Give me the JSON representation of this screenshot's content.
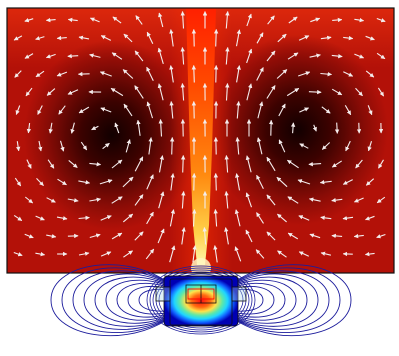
{
  "figure": {
    "colors": {
      "background": "#ffffff",
      "field_dark": "#2a0000",
      "field_mid": "#a00d0a",
      "field_bright": "#ff2a00",
      "plume_core": "#fff2a0",
      "arrow": "#f4ecec",
      "frame": "#111111",
      "contour": "#1c1c9c",
      "heat_red": "#ff2020",
      "heat_yellow": "#ffe14a",
      "heat_cyan": "#1fd6ff",
      "heat_blue": "#0000c8",
      "component_outline": "#111111"
    },
    "icons": {
      "vector_arrow": "arrow-glyph"
    },
    "legend": "none",
    "axes": "none",
    "grid": false
  }
}
